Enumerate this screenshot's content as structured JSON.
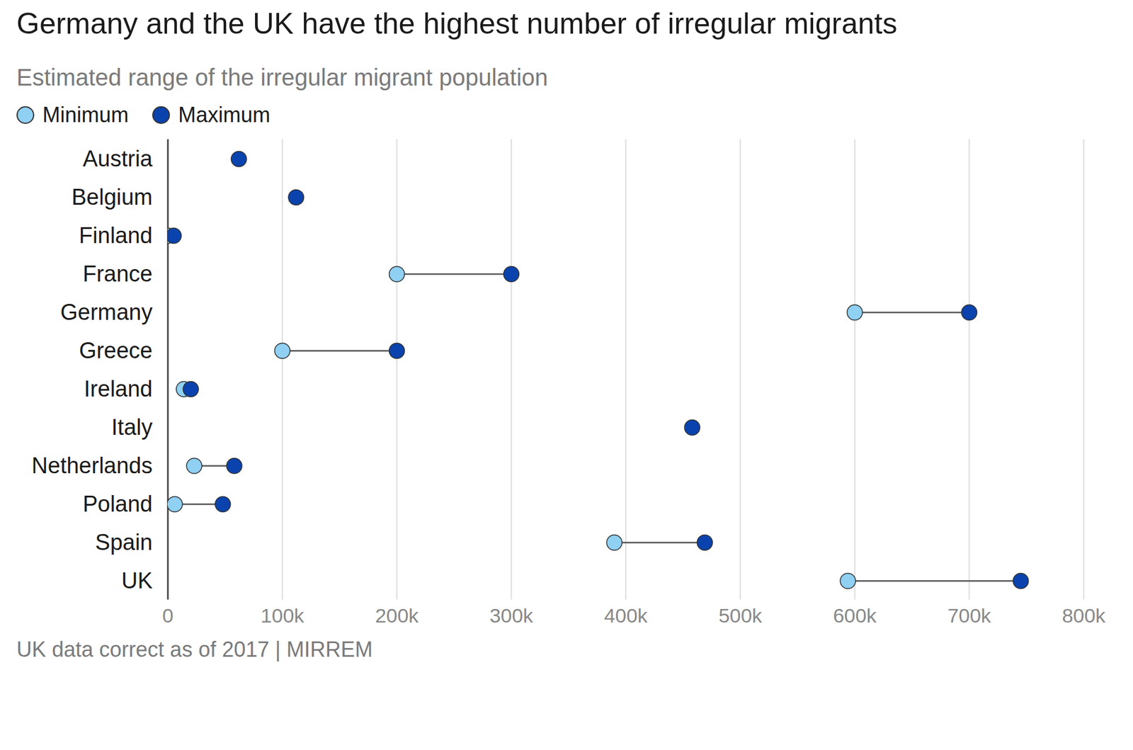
{
  "chart_data": {
    "type": "dumbbell",
    "orientation": "horizontal",
    "title": "Germany and the UK have the highest number of irregular migrants",
    "subtitle": "Estimated range of the irregular migrant population",
    "caption": "UK data correct as of 2017  |  MIRREM",
    "categories": [
      "Austria",
      "Belgium",
      "Finland",
      "France",
      "Germany",
      "Greece",
      "Ireland",
      "Italy",
      "Netherlands",
      "Poland",
      "Spain",
      "UK"
    ],
    "series": [
      {
        "name": "Minimum",
        "color": "#8fd0f3",
        "values": [
          null,
          null,
          0,
          200000,
          600000,
          100000,
          14000,
          null,
          23000,
          6000,
          390000,
          594000
        ]
      },
      {
        "name": "Maximum",
        "color": "#0a43ad",
        "values": [
          62000,
          112000,
          5000,
          300000,
          700000,
          200000,
          20000,
          458000,
          58000,
          48000,
          469000,
          745000
        ]
      }
    ],
    "xlim": [
      0,
      800000
    ],
    "xticks": [
      0,
      {
        "value": 100000,
        "label": "100k"
      },
      {
        "value": 200000,
        "label": "200k"
      },
      {
        "value": 300000,
        "label": "300k"
      },
      {
        "value": 400000,
        "label": "400k"
      },
      {
        "value": 500000,
        "label": "500k"
      },
      {
        "value": 600000,
        "label": "600k"
      },
      {
        "value": 700000,
        "label": "700k"
      },
      {
        "value": 800000,
        "label": "800k"
      }
    ],
    "grid": true,
    "legend": "top-left"
  }
}
